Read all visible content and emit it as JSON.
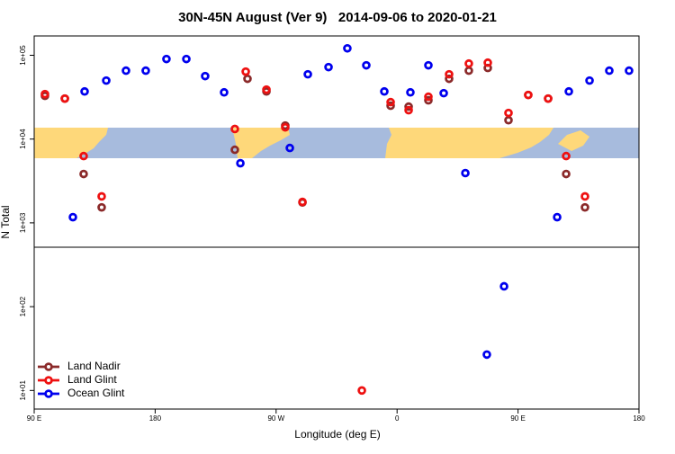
{
  "chart_data": {
    "type": "scatter",
    "title": "30N-45N August (Ver 9)   2014-09-06 to 2020-01-21",
    "x_label": "Longitude (deg E)",
    "y_label": "N Total",
    "xlim": [
      90,
      540
    ],
    "xticks": [
      {
        "value": 90,
        "label": "90 E"
      },
      {
        "value": 180,
        "label": "180"
      },
      {
        "value": 270,
        "label": "90 W"
      },
      {
        "value": 360,
        "label": "0"
      },
      {
        "value": 450,
        "label": "90 E"
      },
      {
        "value": 540,
        "label": "180"
      }
    ],
    "ylim": [
      6,
      170000
    ],
    "log_y": true,
    "yticks": [
      {
        "value": 10,
        "label": "1e+01"
      },
      {
        "value": 100,
        "label": "1e+02"
      },
      {
        "value": 1000,
        "label": "1e+03"
      },
      {
        "value": 10000,
        "label": "1e+04"
      },
      {
        "value": 100000,
        "label": "1e+05"
      }
    ],
    "legend": "bottom-left",
    "series": [
      {
        "name": "Land Nadir",
        "color": "#8b2a2a",
        "x": [
          98.0,
          112.8,
          126.8,
          140.2,
          239.3,
          248.7,
          262.8,
          276.8,
          289.6,
          355.2,
          368.6,
          383.3,
          398.7,
          413.4,
          427.5,
          442.9,
          457.6,
          472.4,
          485.8,
          499.8
        ],
        "values": [
          32800,
          30400,
          3830,
          1530,
          7450,
          52400,
          37000,
          14500,
          1750,
          25000,
          24400,
          29000,
          52400,
          65500,
          70500,
          16800,
          33600,
          30400,
          3830,
          1530
        ]
      },
      {
        "name": "Land Glint",
        "color": "#ee1111",
        "x": [
          98.0,
          112.8,
          126.8,
          140.2,
          239.3,
          247.4,
          262.8,
          276.8,
          289.6,
          333.8,
          355.2,
          368.6,
          383.3,
          398.7,
          413.4,
          427.5,
          442.9,
          457.6,
          472.4,
          485.8,
          499.8
        ],
        "values": [
          34400,
          30400,
          6270,
          2070,
          13200,
          63800,
          38900,
          13800,
          1780,
          10,
          27600,
          22100,
          32000,
          59300,
          79600,
          81600,
          20500,
          33600,
          30400,
          6270,
          2070
        ]
      },
      {
        "name": "Ocean Glint",
        "color": "#0000ee",
        "x": [
          118.8,
          127.5,
          143.6,
          158.3,
          173.0,
          188.4,
          203.2,
          217.2,
          231.3,
          243.4,
          280.2,
          293.6,
          309.0,
          323.0,
          337.1,
          350.5,
          369.9,
          383.3,
          394.7,
          410.8,
          426.8,
          439.6,
          479.1,
          487.8,
          503.2,
          517.9,
          532.6
        ],
        "values": [
          1170,
          37000,
          49900,
          65500,
          65500,
          90200,
          90200,
          56400,
          36100,
          5150,
          7830,
          59300,
          72200,
          121000,
          75900,
          37000,
          36100,
          75900,
          35300,
          3930,
          26.8,
          175,
          1170,
          37000,
          49900,
          65500,
          65500
        ]
      }
    ]
  }
}
